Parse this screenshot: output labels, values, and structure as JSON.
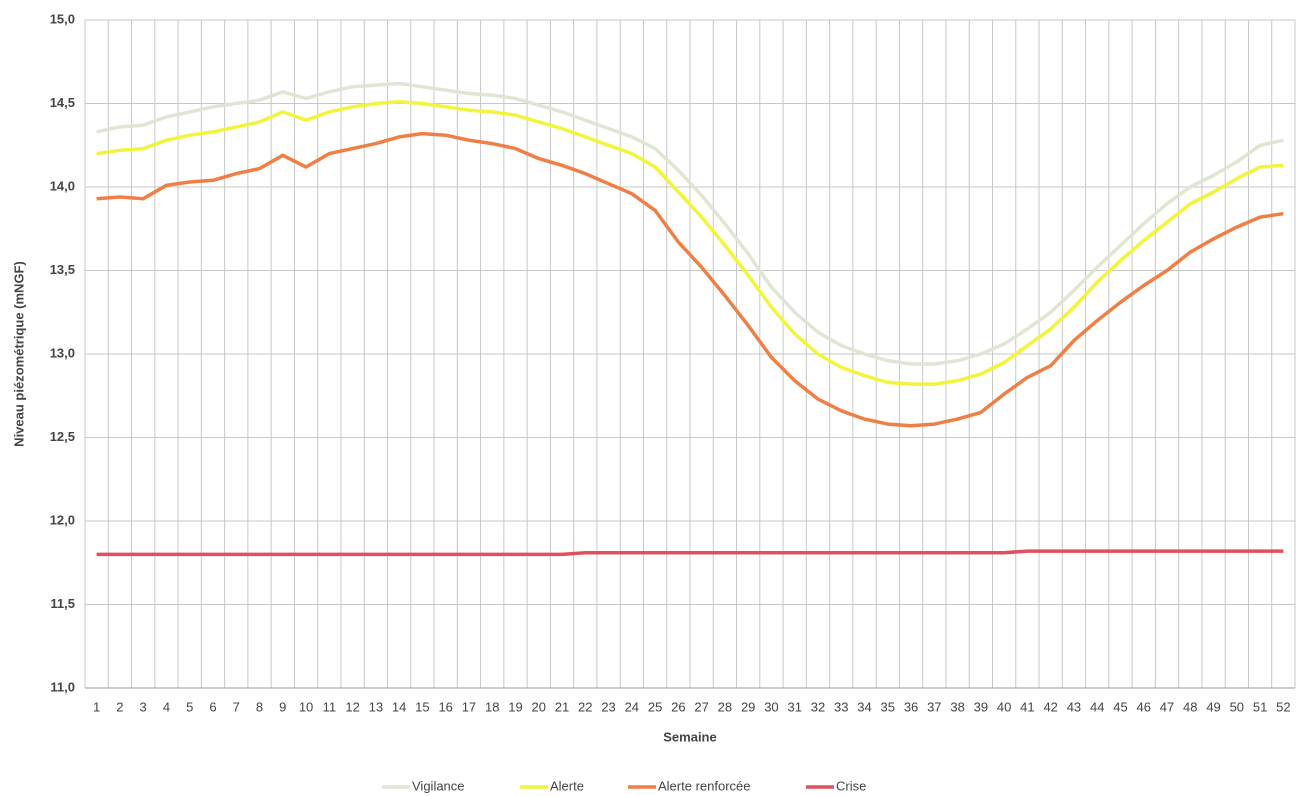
{
  "chart_data": {
    "type": "line",
    "x_label": "Semaine",
    "y_label": "Niveau piézométrique (mNGF)",
    "categories": [
      "1",
      "2",
      "3",
      "4",
      "5",
      "6",
      "7",
      "8",
      "9",
      "10",
      "11",
      "12",
      "13",
      "14",
      "15",
      "16",
      "17",
      "18",
      "19",
      "20",
      "21",
      "22",
      "23",
      "24",
      "25",
      "26",
      "27",
      "28",
      "29",
      "30",
      "31",
      "32",
      "33",
      "34",
      "35",
      "36",
      "37",
      "38",
      "39",
      "40",
      "41",
      "42",
      "43",
      "44",
      "45",
      "46",
      "47",
      "48",
      "49",
      "50",
      "51",
      "52"
    ],
    "series": [
      {
        "name": "Vigilance",
        "color": "#dfe6d3",
        "values": [
          14.33,
          14.36,
          14.37,
          14.42,
          14.45,
          14.48,
          14.5,
          14.52,
          14.57,
          14.53,
          14.57,
          14.6,
          14.61,
          14.62,
          14.6,
          14.58,
          14.56,
          14.55,
          14.53,
          14.49,
          14.45,
          14.4,
          14.35,
          14.3,
          14.23,
          14.1,
          13.95,
          13.78,
          13.6,
          13.4,
          13.25,
          13.13,
          13.05,
          13.0,
          12.96,
          12.94,
          12.94,
          12.96,
          13.0,
          13.06,
          13.15,
          13.25,
          13.38,
          13.52,
          13.65,
          13.78,
          13.9,
          14.0,
          14.07,
          14.15,
          14.25,
          14.28
        ]
      },
      {
        "name": "Alerte",
        "color": "#f3f53c",
        "values": [
          14.2,
          14.22,
          14.23,
          14.28,
          14.31,
          14.33,
          14.36,
          14.39,
          14.45,
          14.4,
          14.45,
          14.48,
          14.5,
          14.51,
          14.5,
          14.48,
          14.46,
          14.45,
          14.43,
          14.39,
          14.35,
          14.3,
          14.25,
          14.2,
          14.12,
          13.97,
          13.82,
          13.65,
          13.47,
          13.28,
          13.12,
          13.0,
          12.92,
          12.87,
          12.83,
          12.82,
          12.82,
          12.84,
          12.88,
          12.95,
          13.05,
          13.15,
          13.28,
          13.43,
          13.56,
          13.68,
          13.79,
          13.9,
          13.97,
          14.05,
          14.12,
          14.13
        ]
      },
      {
        "name": "Alerte renforcée",
        "color": "#ef7f45",
        "values": [
          13.93,
          13.94,
          13.93,
          14.01,
          14.03,
          14.04,
          14.08,
          14.11,
          14.19,
          14.12,
          14.2,
          14.23,
          14.26,
          14.3,
          14.32,
          14.31,
          14.28,
          14.26,
          14.23,
          14.17,
          14.13,
          14.08,
          14.02,
          13.96,
          13.86,
          13.67,
          13.52,
          13.35,
          13.17,
          12.98,
          12.84,
          12.73,
          12.66,
          12.61,
          12.58,
          12.57,
          12.58,
          12.61,
          12.65,
          12.76,
          12.86,
          12.93,
          13.08,
          13.2,
          13.31,
          13.41,
          13.5,
          13.61,
          13.69,
          13.76,
          13.82,
          13.84
        ]
      },
      {
        "name": "Crise",
        "color": "#e0505f",
        "values": [
          11.8,
          11.8,
          11.8,
          11.8,
          11.8,
          11.8,
          11.8,
          11.8,
          11.8,
          11.8,
          11.8,
          11.8,
          11.8,
          11.8,
          11.8,
          11.8,
          11.8,
          11.8,
          11.8,
          11.8,
          11.8,
          11.81,
          11.81,
          11.81,
          11.81,
          11.81,
          11.81,
          11.81,
          11.81,
          11.81,
          11.81,
          11.81,
          11.81,
          11.81,
          11.81,
          11.81,
          11.81,
          11.81,
          11.81,
          11.81,
          11.82,
          11.82,
          11.82,
          11.82,
          11.82,
          11.82,
          11.82,
          11.82,
          11.82,
          11.82,
          11.82,
          11.82
        ]
      }
    ],
    "ylim": [
      11,
      15
    ],
    "yticks": [
      {
        "value": 11,
        "label": "11,0"
      },
      {
        "value": 11.5,
        "label": "11,5"
      },
      {
        "value": 12,
        "label": "12,0"
      },
      {
        "value": 12.5,
        "label": "12,5"
      },
      {
        "value": 13,
        "label": "13,0"
      },
      {
        "value": 13.5,
        "label": "13,5"
      },
      {
        "value": 14,
        "label": "14,0"
      },
      {
        "value": 14.5,
        "label": "14,5"
      },
      {
        "value": 15,
        "label": "15,0"
      }
    ],
    "grid": true,
    "legend": "bottom"
  }
}
